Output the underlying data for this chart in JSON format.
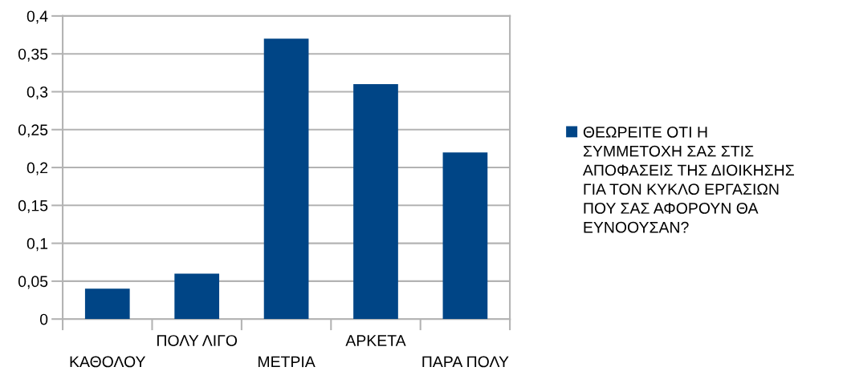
{
  "chart_data": {
    "type": "bar",
    "categories": [
      "ΚΑΘΟΛΟΥ",
      "ΠΟΛΥ ΛΙΓΟ",
      "ΜΕΤΡΙΑ",
      "ΑΡΚΕΤΑ",
      "ΠΑΡΑ ΠΟΛΥ"
    ],
    "series": [
      {
        "name": "ΘΕΩΡΕΙΤΕ ΟΤΙ Η ΣΥΜΜΕΤΟΧΗ ΣΑΣ ΣΤΙΣ ΑΠΟΦΑΣΕΙΣ ΤΗΣ ΔΙΟΙΚΗΣΗΣ ΓΙΑ ΤΟΝ ΚΥΚΛΟ ΕΡΓΑΣΙΩΝ ΠΟΥ ΣΑΣ ΑΦΟΡΟΥΝ ΘΑ ΕΥΝΟΟΥΣΑΝ?",
        "color": "#004586",
        "values": [
          0.04,
          0.06,
          0.37,
          0.31,
          0.22
        ]
      }
    ],
    "ylim": [
      0,
      0.4
    ],
    "yticks": [
      0,
      {
        "value": 0.05,
        "label": "0,05"
      },
      {
        "value": 0.1,
        "label": "0,1"
      },
      {
        "value": 0.15,
        "label": "0,15"
      },
      {
        "value": 0.2,
        "label": "0,2"
      },
      {
        "value": 0.25,
        "label": "0,25"
      },
      {
        "value": 0.3,
        "label": "0,3"
      },
      {
        "value": 0.35,
        "label": "0,35"
      },
      {
        "value": 0.4,
        "label": "0,4"
      }
    ],
    "grid": "y",
    "legend": "right"
  }
}
